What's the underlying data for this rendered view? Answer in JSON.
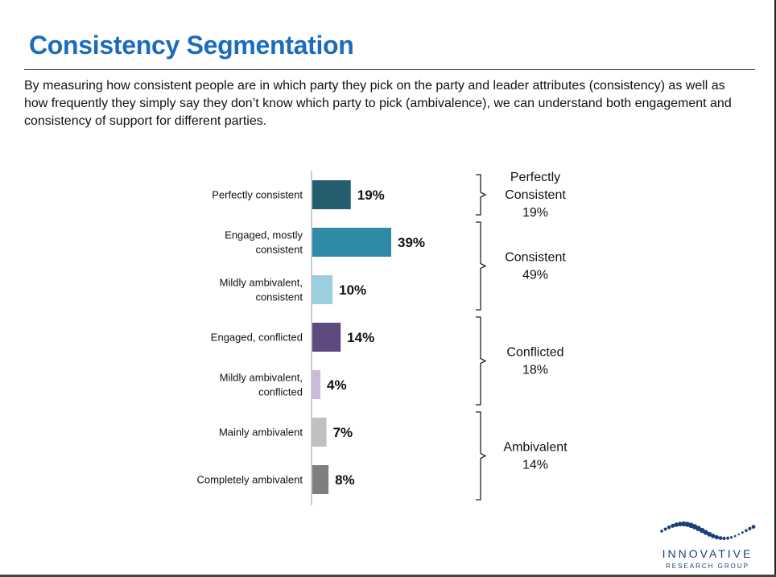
{
  "page": {
    "title": "Consistency Segmentation",
    "intro": "By measuring how consistent people are in which party they pick on the party and leader attributes (consistency) as well as how frequently they simply say they don’t know which party to pick (ambivalence), we can understand both engagement and consistency of support for different parties."
  },
  "chart_data": {
    "type": "bar",
    "orientation": "horizontal",
    "categories": [
      [
        "Perfectly consistent"
      ],
      [
        "Engaged, mostly",
        "consistent"
      ],
      [
        "Mildly ambivalent,",
        "consistent"
      ],
      [
        "Engaged, conflicted"
      ],
      [
        "Mildly ambivalent,",
        "conflicted"
      ],
      [
        "Mainly ambivalent"
      ],
      [
        "Completely ambivalent"
      ]
    ],
    "values": [
      19,
      39,
      10,
      14,
      4,
      7,
      8
    ],
    "value_labels": [
      "19%",
      "39%",
      "10%",
      "14%",
      "4%",
      "7%",
      "8%"
    ],
    "colors": [
      "#245d6e",
      "#2e8aa5",
      "#9acfe0",
      "#5e4a7e",
      "#c7bcdb",
      "#c0c0c0",
      "#7f7f7f"
    ],
    "groups": [
      {
        "lines": [
          "Perfectly",
          "Consistent",
          "19%"
        ],
        "first": 0,
        "last": 0
      },
      {
        "lines": [
          "Consistent",
          "49%"
        ],
        "first": 1,
        "last": 2
      },
      {
        "lines": [
          "Conflicted",
          "18%"
        ],
        "first": 3,
        "last": 4
      },
      {
        "lines": [
          "Ambivalent",
          "14%"
        ],
        "first": 5,
        "last": 6
      }
    ],
    "xlim": [
      0,
      39
    ]
  },
  "logo": {
    "name": "INNOVATIVE",
    "tagline": "RESEARCH GROUP",
    "color": "#1b3e78"
  }
}
